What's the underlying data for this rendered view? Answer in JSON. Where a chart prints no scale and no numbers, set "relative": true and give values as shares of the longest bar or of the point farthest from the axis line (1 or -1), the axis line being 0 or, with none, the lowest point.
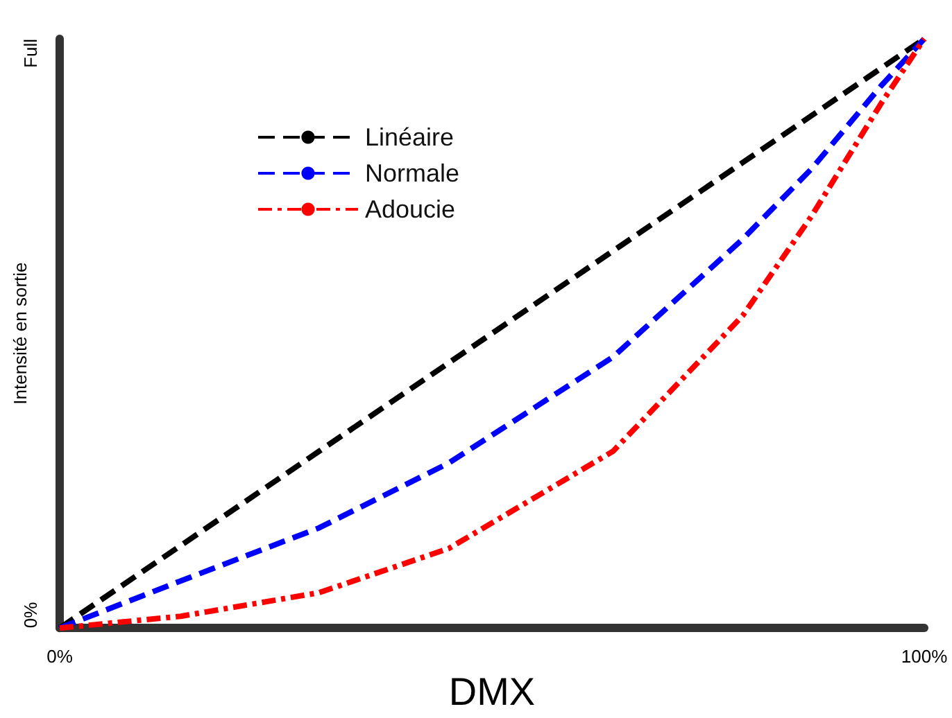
{
  "chart_data": {
    "type": "line",
    "xlabel": "DMX",
    "ylabel": "Intensité en sortie",
    "relative": true,
    "annotations": [
      "0%",
      "Full"
    ],
    "x": [
      0,
      14,
      30,
      45,
      64,
      79,
      87,
      95,
      100
    ],
    "series": [
      {
        "name": "Linéaire",
        "color": "#000000",
        "line_style": "dashed",
        "values": [
          0,
          0.14,
          0.3,
          0.45,
          0.64,
          0.79,
          0.87,
          0.95,
          1
        ]
      },
      {
        "name": "Normale",
        "color": "#0000ff",
        "line_style": "dashed",
        "values": [
          0,
          0.08,
          0.17,
          0.28,
          0.46,
          0.66,
          0.78,
          0.92,
          1
        ]
      },
      {
        "name": "Adoucie",
        "color": "#ff0000",
        "line_style": "dotted",
        "values": [
          0,
          0.02,
          0.06,
          0.135,
          0.3,
          0.53,
          0.7,
          0.89,
          1
        ]
      }
    ],
    "xlim": [
      0,
      100
    ],
    "xticks": [
      {
        "value": 0,
        "label": "0%"
      },
      {
        "value": 100,
        "label": "100%"
      }
    ],
    "grid": false,
    "legend": "top left",
    "marker": "none"
  }
}
